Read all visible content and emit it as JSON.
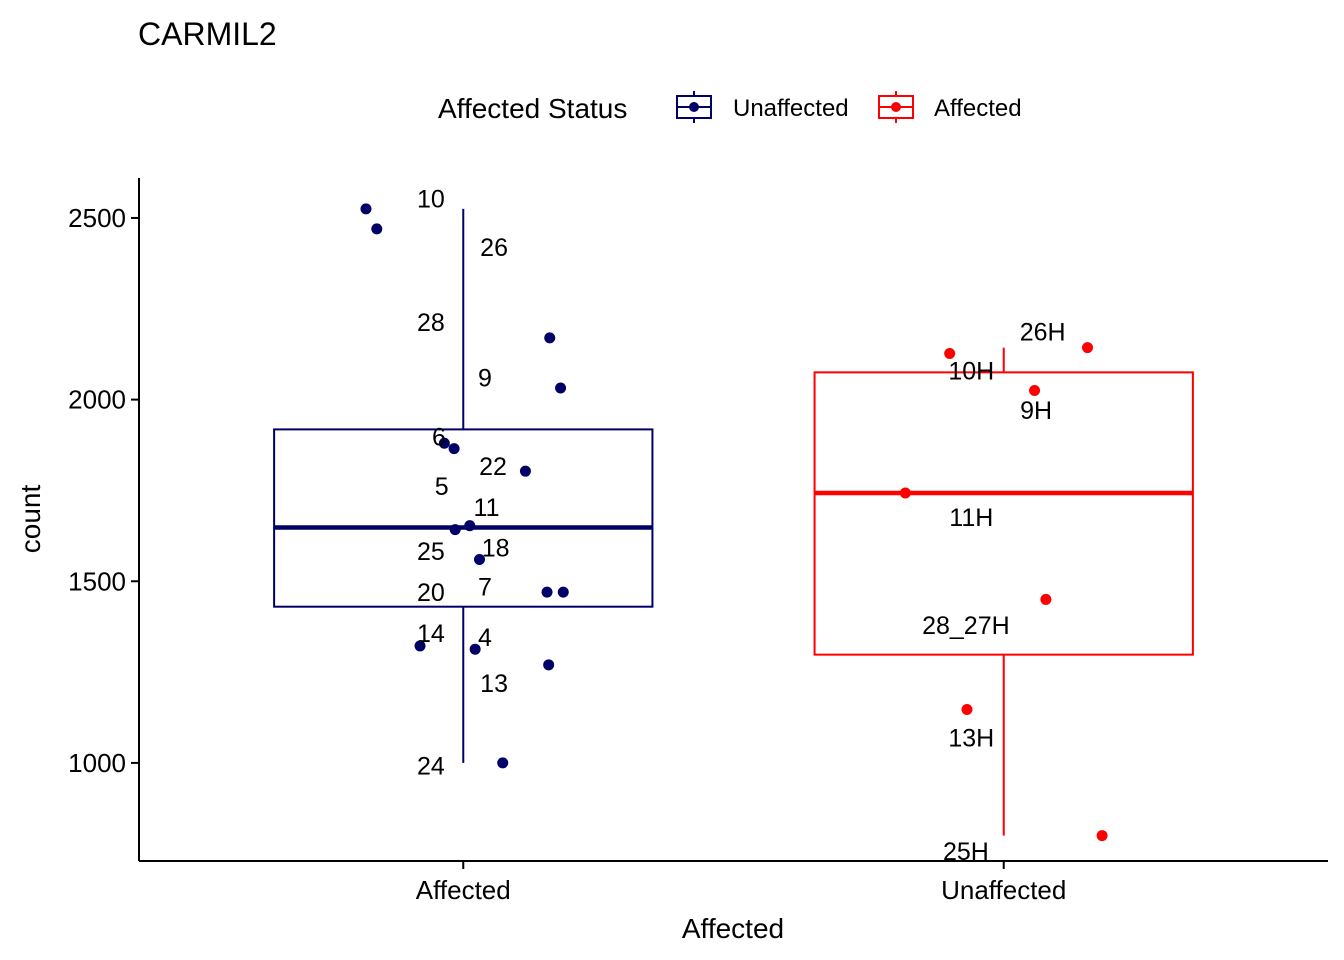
{
  "chart_data": {
    "type": "boxplot",
    "title": "CARMIL2",
    "xlabel": "Affected",
    "ylabel": "count",
    "ylim": [
      730,
      2610
    ],
    "yticks": [
      1000,
      1500,
      2000,
      2500
    ],
    "categories": [
      "Affected",
      "Unaffected"
    ],
    "legend": {
      "title": "Affected Status",
      "placement": "top",
      "entries": [
        {
          "label": "Unaffected",
          "color": "#000066"
        },
        {
          "label": "Affected",
          "color": "#FF0000"
        }
      ]
    },
    "boxes": [
      {
        "category": "Affected",
        "color": "#000066",
        "min": 1000,
        "q1": 1430,
        "median": 1648,
        "q3": 1918,
        "max": 2525
      },
      {
        "category": "Unaffected",
        "color": "#FF0000",
        "min": 800,
        "q1": 1298,
        "median": 1743,
        "q3": 2075,
        "max": 2143
      }
    ],
    "points": [
      {
        "group": 0,
        "label": "10",
        "jitter": -0.18,
        "value": 2525
      },
      {
        "group": 0,
        "label": "26",
        "jitter": -0.16,
        "value": 2470
      },
      {
        "group": 0,
        "label": "28",
        "jitter": 0.16,
        "value": 2170
      },
      {
        "group": 0,
        "label": "9",
        "jitter": 0.18,
        "value": 2032
      },
      {
        "group": 0,
        "label": "6",
        "jitter": -0.035,
        "value": 1880
      },
      {
        "group": 0,
        "label": "5",
        "jitter": -0.017,
        "value": 1865
      },
      {
        "group": 0,
        "label": "22",
        "jitter": 0.115,
        "value": 1803
      },
      {
        "group": 0,
        "label": "11",
        "jitter": 0.012,
        "value": 1653
      },
      {
        "group": 0,
        "label": "25",
        "jitter": -0.015,
        "value": 1642
      },
      {
        "group": 0,
        "label": "18",
        "jitter": 0.03,
        "value": 1560
      },
      {
        "group": 0,
        "label": "7",
        "jitter": 0.155,
        "value": 1470
      },
      {
        "group": 0,
        "label": "20",
        "jitter": 0.185,
        "value": 1470
      },
      {
        "group": 0,
        "label": "14",
        "jitter": -0.08,
        "value": 1322
      },
      {
        "group": 0,
        "label": "4",
        "jitter": 0.022,
        "value": 1313
      },
      {
        "group": 0,
        "label": "13",
        "jitter": 0.158,
        "value": 1270
      },
      {
        "group": 0,
        "label": "24",
        "jitter": 0.073,
        "value": 1000
      },
      {
        "group": 1,
        "label": "10H",
        "jitter": -0.1,
        "value": 2127
      },
      {
        "group": 1,
        "label": "26H",
        "jitter": 0.155,
        "value": 2143
      },
      {
        "group": 1,
        "label": "9H",
        "jitter": 0.057,
        "value": 2025
      },
      {
        "group": 1,
        "label": "11H",
        "jitter": -0.182,
        "value": 1743
      },
      {
        "group": 1,
        "label": "28_27H",
        "jitter": 0.078,
        "value": 1450
      },
      {
        "group": 1,
        "label": "13H",
        "jitter": -0.068,
        "value": 1147
      },
      {
        "group": 1,
        "label": "25H",
        "jitter": 0.182,
        "value": 800
      }
    ],
    "annotations": [
      {
        "text": "10",
        "x": 0.94,
        "y": 2553
      },
      {
        "text": "26",
        "x": 1.057,
        "y": 2420
      },
      {
        "text": "28",
        "x": 0.94,
        "y": 2213
      },
      {
        "text": "9",
        "x": 1.04,
        "y": 2061
      },
      {
        "text": "6",
        "x": 0.955,
        "y": 1898
      },
      {
        "text": "22",
        "x": 1.055,
        "y": 1817
      },
      {
        "text": "5",
        "x": 0.96,
        "y": 1762
      },
      {
        "text": "11",
        "x": 1.043,
        "y": 1705
      },
      {
        "text": "18",
        "x": 1.06,
        "y": 1593
      },
      {
        "text": "25",
        "x": 0.94,
        "y": 1583
      },
      {
        "text": "7",
        "x": 1.04,
        "y": 1486
      },
      {
        "text": "20",
        "x": 0.94,
        "y": 1470
      },
      {
        "text": "4",
        "x": 1.04,
        "y": 1347
      },
      {
        "text": "14",
        "x": 0.94,
        "y": 1358
      },
      {
        "text": "13",
        "x": 1.057,
        "y": 1220
      },
      {
        "text": "24",
        "x": 0.94,
        "y": 993
      },
      {
        "text": "26H",
        "x": 2.072,
        "y": 2187
      },
      {
        "text": "10H",
        "x": 1.94,
        "y": 2080
      },
      {
        "text": "9H",
        "x": 2.06,
        "y": 1972
      },
      {
        "text": "11H",
        "x": 1.94,
        "y": 1677
      },
      {
        "text": "28_27H",
        "x": 1.93,
        "y": 1380
      },
      {
        "text": "13H",
        "x": 1.94,
        "y": 1070
      },
      {
        "text": "25H",
        "x": 1.93,
        "y": 757
      }
    ]
  }
}
